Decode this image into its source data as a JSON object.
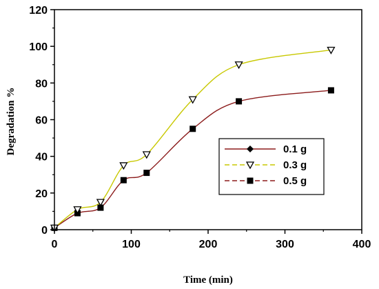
{
  "chart_data": {
    "type": "line",
    "title": "",
    "xlabel": "Time (min)",
    "ylabel": "Degradation %",
    "xlim": [
      0,
      400
    ],
    "ylim": [
      0,
      120
    ],
    "xticks": [
      0,
      100,
      200,
      300,
      400
    ],
    "yticks": [
      0,
      20,
      40,
      60,
      80,
      100,
      120
    ],
    "grid": false,
    "legend_position": "center-right",
    "series": [
      {
        "name": "0.1 g",
        "color": "#8b1a1a",
        "marker": "diamond",
        "line_style": "solid",
        "x": [],
        "y": []
      },
      {
        "name": "0.3 g",
        "color": "#c8c800",
        "marker": "triangle-down-open",
        "line_style": "dashed",
        "x": [
          0,
          30,
          60,
          90,
          120,
          180,
          240,
          360
        ],
        "y": [
          1,
          11,
          15,
          35,
          41,
          71,
          90,
          98
        ]
      },
      {
        "name": "0.5 g",
        "color": "#8b1a1a",
        "marker": "square",
        "line_style": "dashed",
        "x": [
          0,
          30,
          60,
          90,
          120,
          180,
          240,
          360
        ],
        "y": [
          1,
          9,
          12,
          27,
          31,
          55,
          70,
          76
        ]
      }
    ]
  }
}
